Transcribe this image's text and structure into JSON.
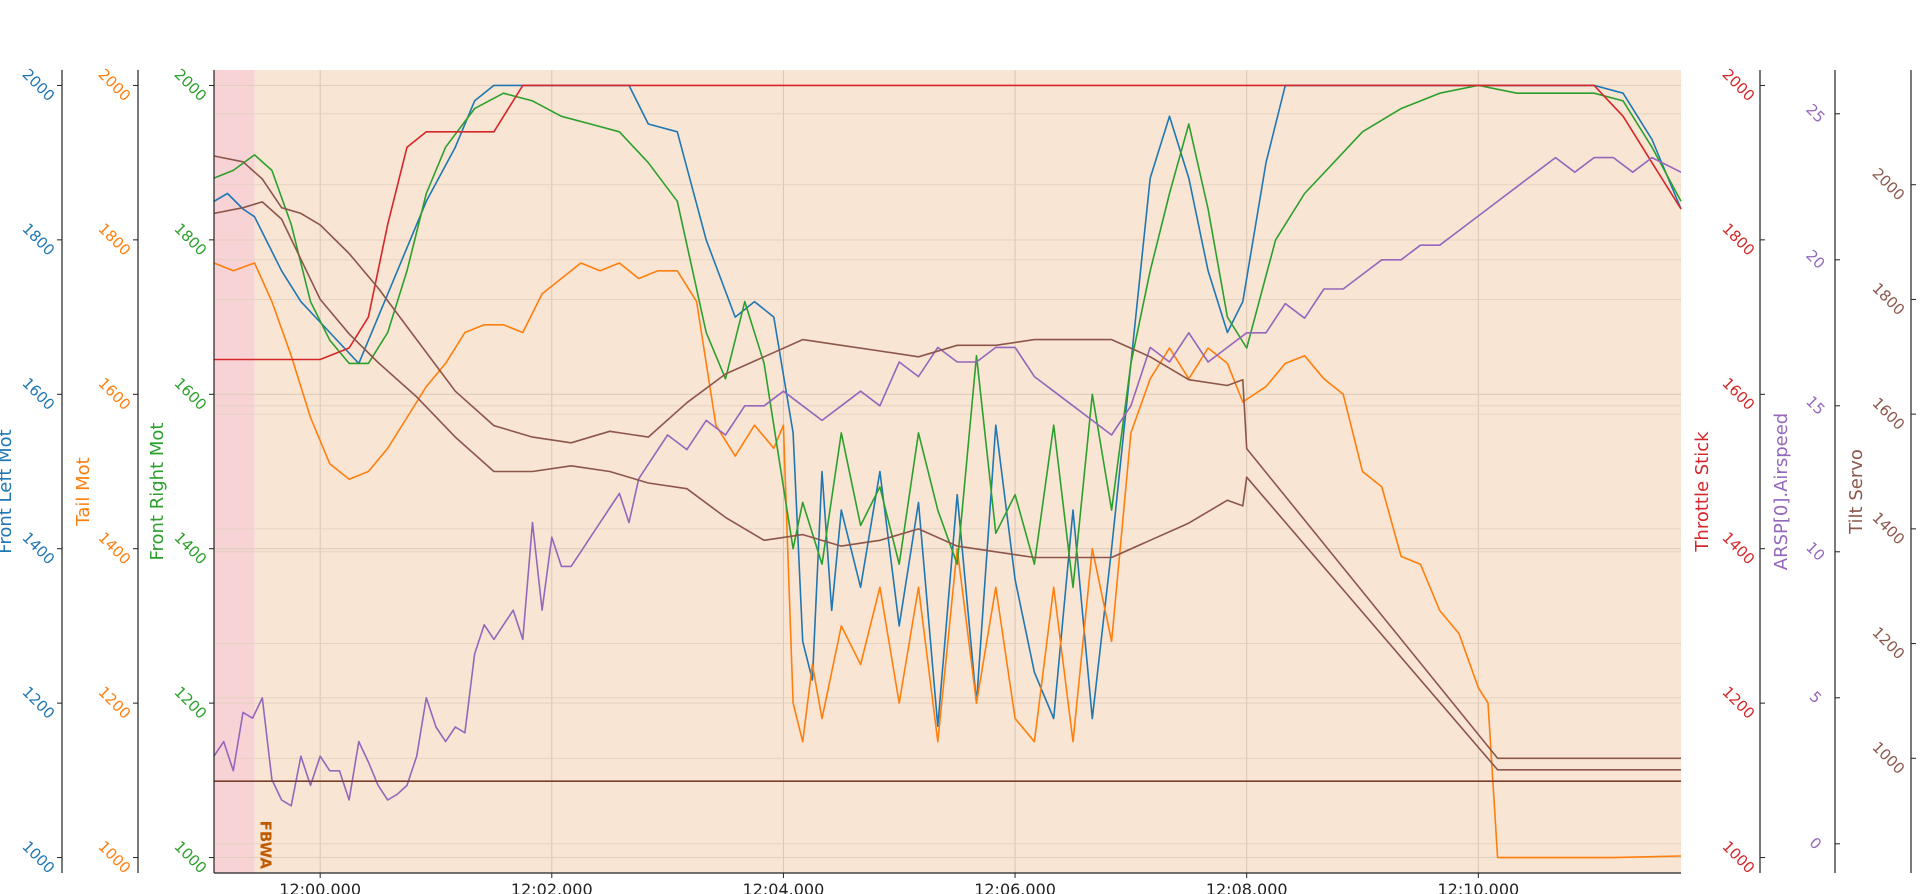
{
  "chart_data": {
    "type": "line",
    "x": {
      "range": [
        "11:59:05",
        "12:11:45"
      ],
      "tick_labels": [
        "12:00.000",
        "12:02.000",
        "12:04.000",
        "12:06.000",
        "12:08.000",
        "12:10.000"
      ],
      "tick_values": [
        "12:00:00",
        "12:02:00",
        "12:04:00",
        "12:06:00",
        "12:08:00",
        "12:10:00"
      ]
    },
    "grid": true,
    "background_color": "#f9e5d3",
    "mode_bands": [
      {
        "start": "11:59:05",
        "end": "11:59:26",
        "color": "#f8d3d6",
        "label": ""
      },
      {
        "start": "11:59:26",
        "end": "12:11:45",
        "color": "#f9e5d3",
        "label": "FBWA"
      }
    ],
    "axes": [
      {
        "id": "front_left",
        "label": "Front Left Mot",
        "color": "#1f77b4",
        "side": "left",
        "range": [
          980,
          2020
        ],
        "ticks": [
          "1000",
          "1200",
          "1400",
          "1600",
          "1800",
          "2000"
        ]
      },
      {
        "id": "tail",
        "label": "Tail Mot",
        "color": "#ff7f0e",
        "side": "left",
        "range": [
          980,
          2020
        ],
        "ticks": [
          "1000",
          "1200",
          "1400",
          "1600",
          "1800",
          "2000"
        ]
      },
      {
        "id": "front_right",
        "label": "Front Right Mot",
        "color": "#2ca02c",
        "side": "left",
        "range": [
          980,
          2020
        ],
        "ticks": [
          "1000",
          "1200",
          "1400",
          "1600",
          "1800",
          "2000"
        ]
      },
      {
        "id": "throttle",
        "label": "Throttle Stick",
        "color": "#d62728",
        "side": "right",
        "range": [
          980,
          2020
        ],
        "ticks": [
          "1000",
          "1200",
          "1400",
          "1600",
          "1800",
          "2000"
        ]
      },
      {
        "id": "airspeed",
        "label": "ARSP[0].Airspeed",
        "color": "#9467bd",
        "side": "right",
        "range": [
          -1,
          26.5
        ],
        "ticks": [
          "0",
          "5",
          "10",
          "15",
          "20",
          "25"
        ]
      },
      {
        "id": "tilt",
        "label": "Tilt Servo",
        "color": "#8c564b",
        "side": "right",
        "range": [
          800,
          2200
        ],
        "ticks": [
          "1000",
          "1200",
          "1400",
          "1600",
          "1800",
          "2000"
        ]
      }
    ],
    "series": [
      {
        "name": "Front Left Mot",
        "axis": "front_left",
        "color": "#1f77b4",
        "x": [
          "11:59:05",
          "11:59:12",
          "11:59:20",
          "11:59:26",
          "11:59:32",
          "11:59:40",
          "11:59:50",
          "12:00:05",
          "12:00:20",
          "12:00:30",
          "12:00:40",
          "12:00:55",
          "12:01:10",
          "12:01:20",
          "12:01:30",
          "12:01:40",
          "12:02:00",
          "12:02:20",
          "12:02:40",
          "12:02:50",
          "12:03:05",
          "12:03:20",
          "12:03:35",
          "12:03:45",
          "12:03:55",
          "12:04:05",
          "12:04:10",
          "12:04:15",
          "12:04:20",
          "12:04:25",
          "12:04:30",
          "12:04:40",
          "12:04:50",
          "12:05:00",
          "12:05:10",
          "12:05:20",
          "12:05:30",
          "12:05:40",
          "12:05:50",
          "12:06:00",
          "12:06:10",
          "12:06:20",
          "12:06:30",
          "12:06:40",
          "12:06:50",
          "12:07:00",
          "12:07:10",
          "12:07:20",
          "12:07:30",
          "12:07:40",
          "12:07:50",
          "12:07:58",
          "12:08:10",
          "12:08:20",
          "12:08:40",
          "12:09:00",
          "12:09:20",
          "12:09:40",
          "12:10:00",
          "12:10:20",
          "12:10:40",
          "12:11:00",
          "12:11:15",
          "12:11:30",
          "12:11:45"
        ],
        "y": [
          1850,
          1860,
          1840,
          1830,
          1800,
          1760,
          1720,
          1680,
          1640,
          1700,
          1760,
          1850,
          1920,
          1980,
          2000,
          2000,
          2000,
          2000,
          2000,
          1950,
          1940,
          1800,
          1700,
          1720,
          1700,
          1550,
          1280,
          1230,
          1500,
          1320,
          1450,
          1350,
          1500,
          1300,
          1460,
          1170,
          1470,
          1200,
          1560,
          1360,
          1240,
          1180,
          1450,
          1180,
          1400,
          1640,
          1880,
          1960,
          1880,
          1760,
          1680,
          1720,
          1900,
          2000,
          2000,
          2000,
          2000,
          2000,
          2000,
          2000,
          2000,
          2000,
          1990,
          1930,
          1840
        ]
      },
      {
        "name": "Tail Mot",
        "axis": "tail",
        "color": "#ff7f0e",
        "x": [
          "11:59:05",
          "11:59:15",
          "11:59:26",
          "11:59:35",
          "11:59:45",
          "11:59:55",
          "12:00:05",
          "12:00:15",
          "12:00:25",
          "12:00:35",
          "12:00:45",
          "12:00:55",
          "12:01:05",
          "12:01:15",
          "12:01:25",
          "12:01:35",
          "12:01:45",
          "12:01:55",
          "12:02:05",
          "12:02:15",
          "12:02:25",
          "12:02:35",
          "12:02:45",
          "12:02:55",
          "12:03:05",
          "12:03:15",
          "12:03:25",
          "12:03:35",
          "12:03:45",
          "12:03:55",
          "12:04:00",
          "12:04:05",
          "12:04:10",
          "12:04:15",
          "12:04:20",
          "12:04:30",
          "12:04:40",
          "12:04:50",
          "12:05:00",
          "12:05:10",
          "12:05:20",
          "12:05:30",
          "12:05:40",
          "12:05:50",
          "12:06:00",
          "12:06:10",
          "12:06:20",
          "12:06:30",
          "12:06:40",
          "12:06:50",
          "12:07:00",
          "12:07:10",
          "12:07:20",
          "12:07:30",
          "12:07:40",
          "12:07:50",
          "12:07:58",
          "12:08:10",
          "12:08:20",
          "12:08:30",
          "12:08:40",
          "12:08:50",
          "12:09:00",
          "12:09:10",
          "12:09:20",
          "12:09:30",
          "12:09:40",
          "12:09:50",
          "12:10:00",
          "12:10:05",
          "12:10:10",
          "12:10:40",
          "12:11:10",
          "12:11:45"
        ],
        "y": [
          1770,
          1760,
          1770,
          1720,
          1650,
          1570,
          1510,
          1490,
          1500,
          1530,
          1570,
          1610,
          1640,
          1680,
          1690,
          1690,
          1680,
          1730,
          1750,
          1770,
          1760,
          1770,
          1750,
          1760,
          1760,
          1720,
          1560,
          1520,
          1560,
          1530,
          1560,
          1200,
          1150,
          1250,
          1180,
          1300,
          1250,
          1350,
          1200,
          1350,
          1150,
          1400,
          1200,
          1350,
          1180,
          1150,
          1350,
          1150,
          1400,
          1280,
          1550,
          1620,
          1660,
          1620,
          1660,
          1640,
          1590,
          1610,
          1640,
          1650,
          1620,
          1600,
          1500,
          1480,
          1390,
          1380,
          1320,
          1290,
          1220,
          1200,
          1000,
          1000,
          1000,
          1002
        ]
      },
      {
        "name": "Front Right Mot",
        "axis": "front_right",
        "color": "#2ca02c",
        "x": [
          "11:59:05",
          "11:59:15",
          "11:59:26",
          "11:59:35",
          "11:59:45",
          "11:59:55",
          "12:00:05",
          "12:00:15",
          "12:00:25",
          "12:00:35",
          "12:00:45",
          "12:00:55",
          "12:01:05",
          "12:01:20",
          "12:01:35",
          "12:01:50",
          "12:02:05",
          "12:02:20",
          "12:02:35",
          "12:02:50",
          "12:03:05",
          "12:03:20",
          "12:03:30",
          "12:03:40",
          "12:03:50",
          "12:04:00",
          "12:04:05",
          "12:04:10",
          "12:04:20",
          "12:04:30",
          "12:04:40",
          "12:04:50",
          "12:05:00",
          "12:05:10",
          "12:05:20",
          "12:05:30",
          "12:05:40",
          "12:05:50",
          "12:06:00",
          "12:06:10",
          "12:06:20",
          "12:06:30",
          "12:06:40",
          "12:06:50",
          "12:07:00",
          "12:07:10",
          "12:07:20",
          "12:07:30",
          "12:07:40",
          "12:07:50",
          "12:08:00",
          "12:08:15",
          "12:08:30",
          "12:08:45",
          "12:09:00",
          "12:09:20",
          "12:09:40",
          "12:10:00",
          "12:10:20",
          "12:10:40",
          "12:11:00",
          "12:11:15",
          "12:11:30",
          "12:11:45"
        ],
        "y": [
          1880,
          1890,
          1910,
          1890,
          1820,
          1720,
          1670,
          1640,
          1640,
          1680,
          1760,
          1860,
          1920,
          1970,
          1990,
          1980,
          1960,
          1950,
          1940,
          1900,
          1850,
          1680,
          1620,
          1720,
          1640,
          1480,
          1400,
          1460,
          1380,
          1550,
          1430,
          1480,
          1380,
          1550,
          1450,
          1380,
          1650,
          1420,
          1470,
          1380,
          1560,
          1350,
          1600,
          1450,
          1640,
          1760,
          1860,
          1950,
          1840,
          1700,
          1660,
          1800,
          1860,
          1900,
          1940,
          1970,
          1990,
          2000,
          1990,
          1990,
          1990,
          1980,
          1920,
          1850
        ]
      },
      {
        "name": "Throttle Stick",
        "axis": "throttle",
        "color": "#d62728",
        "x": [
          "11:59:05",
          "11:59:26",
          "12:00:00",
          "12:00:15",
          "12:00:25",
          "12:00:35",
          "12:00:45",
          "12:00:55",
          "12:01:10",
          "12:01:30",
          "12:01:45",
          "12:02:00",
          "12:03:00",
          "12:05:00",
          "12:07:00",
          "12:09:00",
          "12:10:00",
          "12:11:00",
          "12:11:15",
          "12:11:30",
          "12:11:45"
        ],
        "y": [
          1645,
          1645,
          1645,
          1660,
          1700,
          1820,
          1920,
          1940,
          1940,
          1940,
          2000,
          2000,
          2000,
          2000,
          2000,
          2000,
          2000,
          2000,
          1960,
          1900,
          1840
        ]
      },
      {
        "name": "ARSP[0].Airspeed",
        "axis": "airspeed",
        "color": "#9467bd",
        "x": [
          "11:59:05",
          "11:59:10",
          "11:59:15",
          "11:59:20",
          "11:59:25",
          "11:59:30",
          "11:59:35",
          "11:59:40",
          "11:59:45",
          "11:59:50",
          "11:59:55",
          "12:00:00",
          "12:00:05",
          "12:00:10",
          "12:00:15",
          "12:00:20",
          "12:00:25",
          "12:00:30",
          "12:00:35",
          "12:00:40",
          "12:00:45",
          "12:00:50",
          "12:00:55",
          "12:01:00",
          "12:01:05",
          "12:01:10",
          "12:01:15",
          "12:01:20",
          "12:01:25",
          "12:01:30",
          "12:01:35",
          "12:01:40",
          "12:01:45",
          "12:01:50",
          "12:01:55",
          "12:02:00",
          "12:02:05",
          "12:02:10",
          "12:02:15",
          "12:02:20",
          "12:02:25",
          "12:02:30",
          "12:02:35",
          "12:02:40",
          "12:02:45",
          "12:02:50",
          "12:03:00",
          "12:03:10",
          "12:03:20",
          "12:03:30",
          "12:03:40",
          "12:03:50",
          "12:04:00",
          "12:04:10",
          "12:04:20",
          "12:04:30",
          "12:04:40",
          "12:04:50",
          "12:05:00",
          "12:05:10",
          "12:05:20",
          "12:05:30",
          "12:05:40",
          "12:05:50",
          "12:06:00",
          "12:06:10",
          "12:06:20",
          "12:06:30",
          "12:06:40",
          "12:06:50",
          "12:07:00",
          "12:07:10",
          "12:07:20",
          "12:07:30",
          "12:07:40",
          "12:07:50",
          "12:08:00",
          "12:08:10",
          "12:08:20",
          "12:08:30",
          "12:08:40",
          "12:08:50",
          "12:09:00",
          "12:09:10",
          "12:09:20",
          "12:09:30",
          "12:09:40",
          "12:09:50",
          "12:10:00",
          "12:10:10",
          "12:10:20",
          "12:10:30",
          "12:10:40",
          "12:10:50",
          "12:11:00",
          "12:11:10",
          "12:11:20",
          "12:11:30",
          "12:11:45"
        ],
        "y": [
          3.0,
          3.5,
          2.5,
          4.5,
          4.3,
          5.0,
          2.2,
          1.5,
          1.3,
          3.0,
          2.0,
          3.0,
          2.5,
          2.5,
          1.5,
          3.5,
          2.8,
          2.0,
          1.5,
          1.7,
          2.0,
          3.0,
          5.0,
          4.0,
          3.5,
          4.0,
          3.8,
          6.5,
          7.5,
          7.0,
          7.5,
          8.0,
          7.0,
          11.0,
          8.0,
          10.5,
          9.5,
          9.5,
          10.0,
          10.5,
          11.0,
          11.5,
          12.0,
          11.0,
          12.5,
          13.0,
          14.0,
          13.5,
          14.5,
          14.0,
          15.0,
          15.0,
          15.5,
          15.0,
          14.5,
          15.0,
          15.5,
          15.0,
          16.5,
          16.0,
          17.0,
          16.5,
          16.5,
          17.0,
          17.0,
          16.0,
          15.5,
          15.0,
          14.5,
          14.0,
          15.0,
          17.0,
          16.5,
          17.5,
          16.5,
          17.0,
          17.5,
          17.5,
          18.5,
          18.0,
          19.0,
          19.0,
          19.5,
          20.0,
          20.0,
          20.5,
          20.5,
          21.0,
          21.5,
          22.0,
          22.5,
          23.0,
          23.5,
          23.0,
          23.5,
          23.5,
          23.0,
          23.5,
          23.0
        ]
      },
      {
        "name": "Tilt Servo",
        "axis": "tilt",
        "color": "#8c564b",
        "x": [
          "11:59:05",
          "11:59:20",
          "11:59:30",
          "11:59:40",
          "11:59:50",
          "12:00:00",
          "12:00:15",
          "12:00:30",
          "12:00:50",
          "12:01:10",
          "12:01:30",
          "12:01:50",
          "12:02:10",
          "12:02:30",
          "12:02:50",
          "12:03:10",
          "12:03:30",
          "12:03:50",
          "12:04:10",
          "12:04:30",
          "12:04:50",
          "12:05:10",
          "12:05:30",
          "12:05:50",
          "12:06:10",
          "12:06:30",
          "12:06:50",
          "12:07:10",
          "12:07:30",
          "12:07:50",
          "12:07:58",
          "12:08:00",
          "12:10:10",
          "12:11:45"
        ],
        "y": [
          2050,
          2040,
          2010,
          1960,
          1950,
          1930,
          1880,
          1820,
          1730,
          1640,
          1580,
          1560,
          1550,
          1570,
          1560,
          1620,
          1670,
          1700,
          1730,
          1720,
          1710,
          1700,
          1720,
          1720,
          1730,
          1730,
          1730,
          1700,
          1660,
          1650,
          1660,
          1540,
          1000,
          1000
        ]
      },
      {
        "name": "",
        "axis": "tilt",
        "color": "#8c564b",
        "x": [
          "11:59:05",
          "11:59:20",
          "11:59:30",
          "11:59:40",
          "11:59:50",
          "12:00:00",
          "12:00:15",
          "12:00:30",
          "12:00:50",
          "12:01:10",
          "12:01:30",
          "12:01:50",
          "12:02:10",
          "12:02:30",
          "12:02:50",
          "12:03:10",
          "12:03:30",
          "12:03:50",
          "12:04:10",
          "12:04:30",
          "12:04:50",
          "12:05:10",
          "12:05:30",
          "12:05:50",
          "12:06:10",
          "12:06:30",
          "12:06:50",
          "12:07:10",
          "12:07:30",
          "12:07:50",
          "12:07:58",
          "12:08:00",
          "12:10:10",
          "12:11:45"
        ],
        "y": [
          1950,
          1960,
          1970,
          1940,
          1870,
          1800,
          1740,
          1690,
          1630,
          1560,
          1500,
          1500,
          1510,
          1500,
          1480,
          1470,
          1420,
          1380,
          1390,
          1370,
          1380,
          1400,
          1370,
          1360,
          1350,
          1350,
          1350,
          1380,
          1410,
          1450,
          1440,
          1490,
          980,
          980
        ]
      },
      {
        "name": "",
        "axis": "tilt",
        "color": "#7b3f2e",
        "x": [
          "11:59:05",
          "12:11:45"
        ],
        "y": [
          960,
          960
        ]
      }
    ]
  }
}
